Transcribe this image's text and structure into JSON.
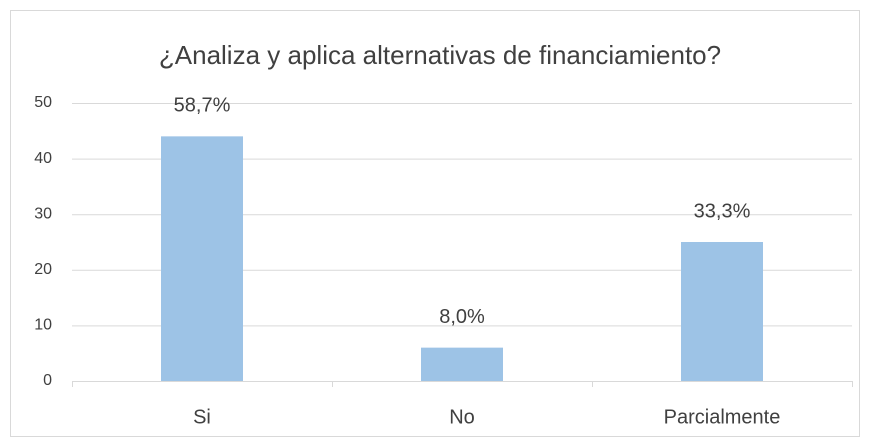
{
  "chart_data": {
    "type": "bar",
    "title": "¿Analiza y aplica alternativas de financiamiento?",
    "categories": [
      "Si",
      "No",
      "Parcialmente"
    ],
    "values": [
      44,
      6,
      25
    ],
    "annotations": [
      "58,7%",
      "8,0%",
      "33,3%"
    ],
    "color": "#9dc3e6",
    "ylim": [
      0,
      50
    ],
    "yticks": [
      0,
      10,
      20,
      30,
      40,
      50
    ],
    "grid": true
  }
}
